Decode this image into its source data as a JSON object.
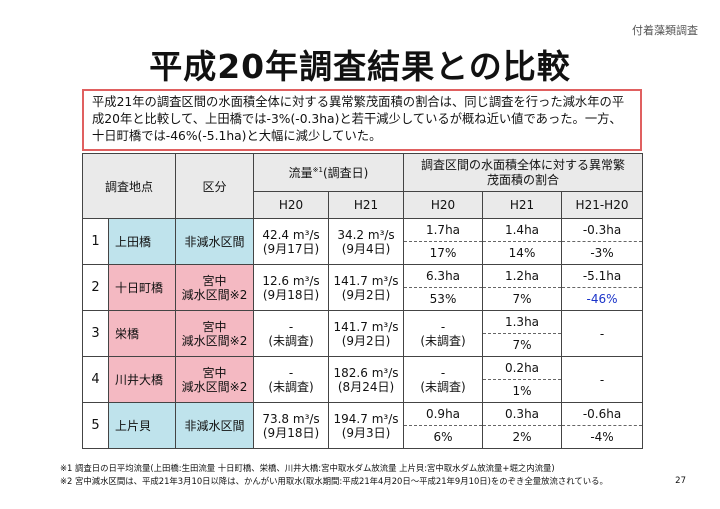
{
  "tag": "付着藻類調査",
  "title": "平成20年調査結果との比較",
  "summary": "平成21年の調査区間の水面積全体に対する異常繁茂面積の割合は、同じ調査を行った減水年の平成20年と比較して、上田橋では-3%(-0.3ha)と若干減少しているが概ね近い値であった。一方、十日町橋では-46%(-5.1ha)と大幅に減少していた。",
  "headers": {
    "site": "調査地点",
    "zone": "区分",
    "flow": "流量",
    "flow_note": "※1",
    "flow_suffix": "(調査日)",
    "ratio": "調査区間の水面積全体に対する異常繁茂面積の割合",
    "h20": "H20",
    "h21": "H21",
    "diff": "H21-H20"
  },
  "rows": [
    {
      "no": "1",
      "site": "上田橋",
      "zone": "非減水区間",
      "q20": "42.4 m³/s",
      "d20": "(9月17日)",
      "q21": "34.2 m³/s",
      "d21": "(9月4日)",
      "a20": "1.7ha",
      "a21": "1.4ha",
      "ad": "-0.3ha",
      "p20": "17%",
      "p21": "14%",
      "pd": "-3%"
    },
    {
      "no": "2",
      "site": "十日町橋",
      "zone": "宮中",
      "zone2": "減水区間※2",
      "q20": "12.6 m³/s",
      "d20": "(9月18日)",
      "q21": "141.7 m³/s",
      "d21": "(9月2日)",
      "a20": "6.3ha",
      "a21": "1.2ha",
      "ad": "-5.1ha",
      "p20": "53%",
      "p21": "7%",
      "pd": "-46%"
    },
    {
      "no": "3",
      "site": "栄橋",
      "zone": "宮中",
      "zone2": "減水区間※2",
      "q20": "-",
      "d20": "(未調査)",
      "q21": "141.7 m³/s",
      "d21": "(9月2日)",
      "a20": "-",
      "a20b": "(未調査)",
      "a21": "1.3ha",
      "p21": "7%",
      "ad": "-"
    },
    {
      "no": "4",
      "site": "川井大橋",
      "zone": "宮中",
      "zone2": "減水区間※2",
      "q20": "-",
      "d20": "(未調査)",
      "q21": "182.6 m³/s",
      "d21": "(8月24日)",
      "a20": "-",
      "a20b": "(未調査)",
      "a21": "0.2ha",
      "p21": "1%",
      "ad": "-"
    },
    {
      "no": "5",
      "site": "上片貝",
      "zone": "非減水区間",
      "q20": "73.8 m³/s",
      "d20": "(9月18日)",
      "q21": "194.7 m³/s",
      "d21": "(9月3日)",
      "a20": "0.9ha",
      "a21": "0.3ha",
      "ad": "-0.6ha",
      "p20": "6%",
      "p21": "2%",
      "pd": "-4%"
    }
  ],
  "notes": [
    "※1 調査日の日平均流量(上田橋:生田流量 十日町橋、栄橋、川井大橋:宮中取水ダム放流量 上片貝:宮中取水ダム放流量+堀之内流量)",
    "※2 宮中減水区間は、平成21年3月10日以降は、かんがい用取水(取水期間:平成21年4月20日〜平成21年9月10日)をのぞき全量放流されている。"
  ],
  "page_number": "27"
}
